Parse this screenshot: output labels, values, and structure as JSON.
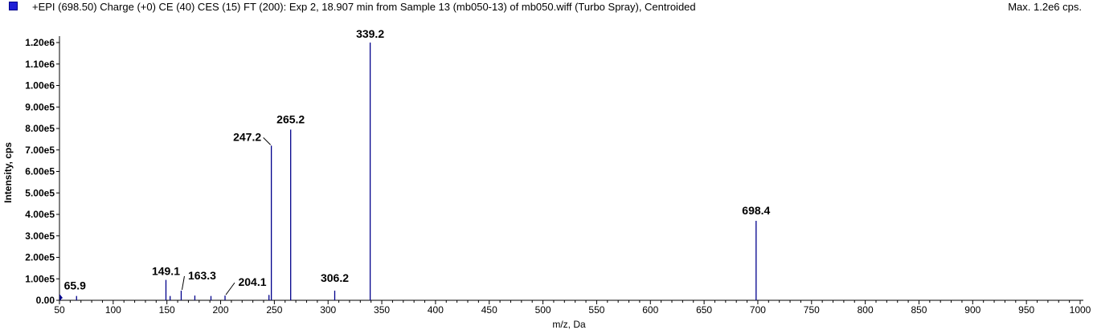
{
  "header": {
    "title": "+EPI (698.50) Charge (+0) CE (40) CES (15) FT (200): Exp 2, 18.907 min from Sample 13 (mb050-13) of mb050.wiff (Turbo Spray), Centroided",
    "max_label": "Max. 1.2e6 cps.",
    "marker_color": "#1f1fd6"
  },
  "chart_data": {
    "type": "bar",
    "xlabel": "m/z, Da",
    "ylabel": "Intensity, cps",
    "xlim": [
      50,
      1000
    ],
    "ylim": [
      0,
      1200000
    ],
    "x_ticks": [
      50,
      100,
      150,
      200,
      250,
      300,
      350,
      400,
      450,
      500,
      550,
      600,
      650,
      700,
      750,
      800,
      850,
      900,
      950,
      1000
    ],
    "y_ticks": [
      0,
      100000,
      200000,
      300000,
      400000,
      500000,
      600000,
      700000,
      800000,
      900000,
      1000000,
      1100000,
      1200000
    ],
    "y_tick_labels": [
      "0.00",
      "1.00e5",
      "2.00e5",
      "3.00e5",
      "4.00e5",
      "5.00e5",
      "6.00e5",
      "7.00e5",
      "8.00e5",
      "9.00e5",
      "1.00e6",
      "1.10e6",
      "1.20e6"
    ],
    "bar_color": "#00008b",
    "peaks": [
      {
        "x": 51.0,
        "y": 14000
      },
      {
        "x": 65.9,
        "y": 20000
      },
      {
        "x": 149.1,
        "y": 95000
      },
      {
        "x": 153.0,
        "y": 20000
      },
      {
        "x": 163.3,
        "y": 45000
      },
      {
        "x": 176.0,
        "y": 22000
      },
      {
        "x": 191.0,
        "y": 20000
      },
      {
        "x": 204.1,
        "y": 22000
      },
      {
        "x": 245.0,
        "y": 25000
      },
      {
        "x": 247.2,
        "y": 720000
      },
      {
        "x": 265.2,
        "y": 795000
      },
      {
        "x": 306.2,
        "y": 45000
      },
      {
        "x": 339.2,
        "y": 1200000
      },
      {
        "x": 698.4,
        "y": 370000
      }
    ],
    "peak_labels": [
      {
        "x": 65.9,
        "y": 20000,
        "text": "65.9"
      },
      {
        "x": 149.1,
        "y": 95000,
        "text": "149.1"
      },
      {
        "x": 163.3,
        "y": 45000,
        "text": "163.3"
      },
      {
        "x": 204.1,
        "y": 22000,
        "text": "204.1"
      },
      {
        "x": 247.2,
        "y": 720000,
        "text": "247.2"
      },
      {
        "x": 265.2,
        "y": 795000,
        "text": "265.2"
      },
      {
        "x": 306.2,
        "y": 45000,
        "text": "306.2"
      },
      {
        "x": 339.2,
        "y": 1200000,
        "text": "339.2"
      },
      {
        "x": 698.4,
        "y": 370000,
        "text": "698.4"
      }
    ]
  }
}
